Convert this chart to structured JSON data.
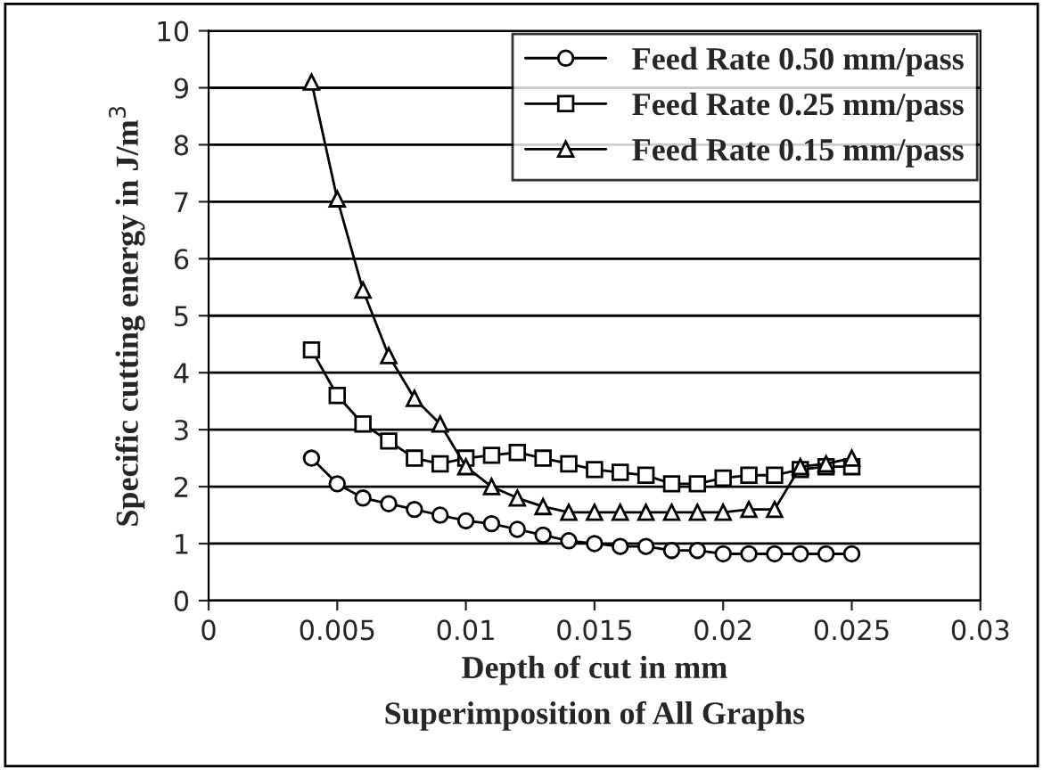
{
  "chart_data": {
    "type": "line",
    "xlabel": "Depth of cut in mm",
    "ylabel": "Specific cutting energy in J/m$^{3}$",
    "annotations": [
      "Superimposition of All Graphs"
    ],
    "x": [
      0.004,
      0.005,
      0.006,
      0.007,
      0.008,
      0.009,
      0.01,
      0.011,
      0.012,
      0.013,
      0.014,
      0.015,
      0.016,
      0.017,
      0.018,
      0.019,
      0.02,
      0.021,
      0.022,
      0.023,
      0.024,
      0.025
    ],
    "series": [
      {
        "name": "Feed Rate 0.50 mm/pass",
        "color": "#000000",
        "marker": "circle",
        "values": [
          2.5,
          2.05,
          1.8,
          1.7,
          1.6,
          1.5,
          1.4,
          1.35,
          1.25,
          1.15,
          1.05,
          1.0,
          0.95,
          0.95,
          0.88,
          0.88,
          0.82,
          0.82,
          0.82,
          0.82,
          0.82,
          0.82
        ]
      },
      {
        "name": "Feed Rate 0.25 mm/pass",
        "color": "#000000",
        "marker": "square",
        "values": [
          4.4,
          3.6,
          3.1,
          2.8,
          2.5,
          2.4,
          2.5,
          2.55,
          2.6,
          2.5,
          2.4,
          2.3,
          2.25,
          2.2,
          2.05,
          2.05,
          2.15,
          2.2,
          2.2,
          2.3,
          2.35,
          2.35
        ]
      },
      {
        "name": "Feed Rate 0.15 mm/pass",
        "color": "#000000",
        "marker": "triangle",
        "values": [
          9.1,
          7.05,
          5.45,
          4.3,
          3.55,
          3.1,
          2.35,
          2.0,
          1.8,
          1.65,
          1.55,
          1.55,
          1.55,
          1.55,
          1.55,
          1.55,
          1.55,
          1.6,
          1.6,
          2.35,
          2.4,
          2.5
        ]
      }
    ],
    "xlim": [
      0,
      0.03
    ],
    "xticks": [
      0,
      0.005,
      0.01,
      0.015,
      0.02,
      0.025,
      0.03
    ],
    "ylim": [
      0,
      10
    ],
    "yticks": [
      0,
      1,
      2,
      3,
      4,
      5,
      6,
      7,
      8,
      9,
      10
    ],
    "grid": "y",
    "legend": "top right"
  }
}
